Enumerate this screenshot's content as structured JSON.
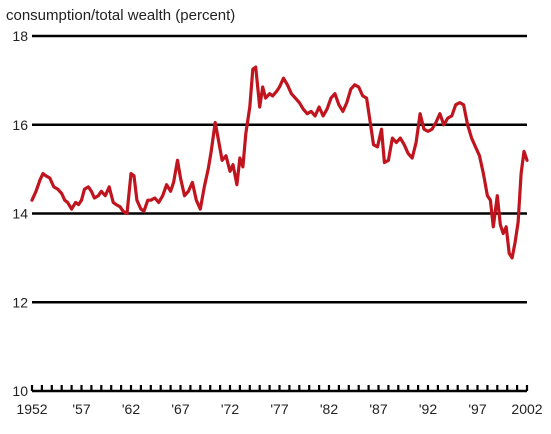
{
  "chart_data": {
    "type": "line",
    "title": "consumption/total wealth (percent)",
    "xlabel": "",
    "ylabel": "",
    "xlim": [
      1952,
      2002
    ],
    "ylim": [
      10,
      18
    ],
    "y_ticks": [
      10,
      12,
      14,
      16,
      18
    ],
    "x_ticks": [
      1952,
      1957,
      1962,
      1967,
      1972,
      1977,
      1982,
      1987,
      1992,
      1997,
      2002
    ],
    "x_tick_labels": [
      "1952",
      "'57",
      "'62",
      "'67",
      "'72",
      "'77",
      "'82",
      "'87",
      "'92",
      "'97",
      "2002"
    ],
    "grid": "horizontal",
    "line_color": "#c0141e",
    "series": [
      {
        "x": [
          1952.0,
          1952.4,
          1952.8,
          1953.1,
          1953.4,
          1953.8,
          1954.2,
          1954.6,
          1955.0,
          1955.3,
          1955.6,
          1956.0,
          1956.4,
          1956.7,
          1957.0,
          1957.3,
          1957.7,
          1958.0,
          1958.3,
          1958.7,
          1959.0,
          1959.4,
          1959.8,
          1960.2,
          1960.5,
          1960.9,
          1961.2,
          1961.6,
          1962.0,
          1962.3,
          1962.6,
          1963.0,
          1963.3,
          1963.7,
          1964.0,
          1964.4,
          1964.8,
          1965.2,
          1965.6,
          1966.0,
          1966.3,
          1966.7,
          1967.0,
          1967.4,
          1967.8,
          1968.2,
          1968.6,
          1969.0,
          1969.4,
          1969.8,
          1970.1,
          1970.5,
          1970.8,
          1971.2,
          1971.6,
          1972.0,
          1972.3,
          1972.7,
          1973.0,
          1973.3,
          1973.6,
          1974.0,
          1974.3,
          1974.6,
          1975.0,
          1975.3,
          1975.6,
          1976.0,
          1976.3,
          1976.7,
          1977.0,
          1977.4,
          1977.8,
          1978.2,
          1978.6,
          1979.0,
          1979.4,
          1979.8,
          1980.2,
          1980.6,
          1981.0,
          1981.4,
          1981.8,
          1982.2,
          1982.6,
          1983.0,
          1983.4,
          1983.8,
          1984.2,
          1984.6,
          1985.0,
          1985.4,
          1985.8,
          1986.2,
          1986.5,
          1986.9,
          1987.3,
          1987.6,
          1988.0,
          1988.4,
          1988.8,
          1989.2,
          1989.6,
          1990.0,
          1990.4,
          1990.8,
          1991.2,
          1991.6,
          1992.0,
          1992.4,
          1992.8,
          1993.2,
          1993.6,
          1994.0,
          1994.4,
          1994.8,
          1995.2,
          1995.6,
          1996.0,
          1996.4,
          1996.8,
          1997.2,
          1997.6,
          1998.0,
          1998.3,
          1998.6,
          1999.0,
          1999.3,
          1999.6,
          1999.9,
          2000.2,
          2000.5,
          2000.8,
          2001.1,
          2001.4,
          2001.7,
          2002.0
        ],
        "y": [
          14.3,
          14.5,
          14.75,
          14.9,
          14.85,
          14.8,
          14.6,
          14.55,
          14.45,
          14.3,
          14.25,
          14.1,
          14.25,
          14.2,
          14.3,
          14.55,
          14.6,
          14.5,
          14.35,
          14.4,
          14.5,
          14.4,
          14.6,
          14.25,
          14.2,
          14.15,
          14.05,
          14.0,
          14.9,
          14.85,
          14.3,
          14.1,
          14.05,
          14.3,
          14.3,
          14.35,
          14.25,
          14.4,
          14.65,
          14.5,
          14.7,
          15.2,
          14.8,
          14.4,
          14.5,
          14.7,
          14.3,
          14.1,
          14.6,
          15.0,
          15.4,
          16.05,
          15.7,
          15.2,
          15.3,
          14.95,
          15.1,
          14.65,
          15.25,
          15.05,
          15.8,
          16.4,
          17.25,
          17.3,
          16.4,
          16.85,
          16.6,
          16.7,
          16.65,
          16.75,
          16.85,
          17.05,
          16.9,
          16.7,
          16.6,
          16.5,
          16.35,
          16.25,
          16.3,
          16.2,
          16.4,
          16.2,
          16.35,
          16.6,
          16.7,
          16.45,
          16.3,
          16.5,
          16.8,
          16.9,
          16.85,
          16.65,
          16.6,
          16.0,
          15.55,
          15.5,
          15.9,
          15.15,
          15.2,
          15.7,
          15.6,
          15.7,
          15.55,
          15.35,
          15.25,
          15.6,
          16.25,
          15.9,
          15.85,
          15.9,
          16.05,
          16.25,
          16.0,
          16.15,
          16.2,
          16.45,
          16.5,
          16.45,
          16.0,
          15.7,
          15.5,
          15.3,
          14.9,
          14.4,
          14.3,
          13.7,
          14.4,
          13.75,
          13.55,
          13.7,
          13.1,
          13.0,
          13.35,
          13.8,
          14.9,
          15.4,
          15.2
        ]
      }
    ]
  }
}
